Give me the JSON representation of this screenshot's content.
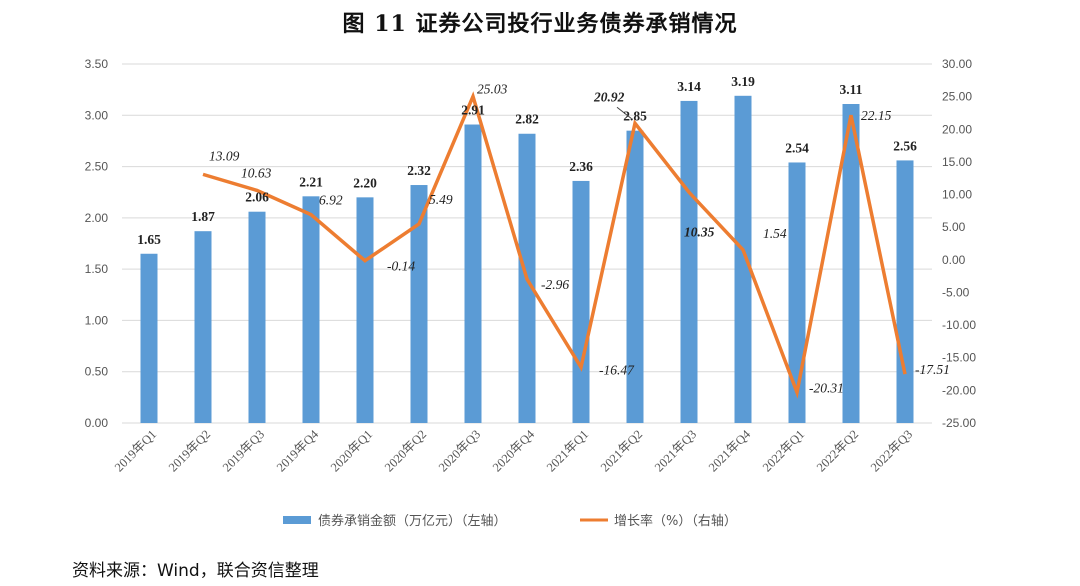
{
  "title": "图 11  证券公司投行业务债券承销情况",
  "source": "资料来源：Wind，联合资信整理",
  "colors": {
    "bar": "#5b9bd5",
    "line": "#ed7d31",
    "grid": "#d9d9d9",
    "highlight_label": "#e0262c"
  },
  "chart_data": {
    "type": "bar+line",
    "categories": [
      "2019年Q1",
      "2019年Q2",
      "2019年Q3",
      "2019年Q4",
      "2020年Q1",
      "2020年Q2",
      "2020年Q3",
      "2020年Q4",
      "2021年Q1",
      "2021年Q2",
      "2021年Q3",
      "2021年Q4",
      "2022年Q1",
      "2022年Q2",
      "2022年Q3"
    ],
    "series": [
      {
        "name": "债券承销金额（万亿元）（左轴）",
        "type": "bar",
        "axis": "left",
        "values": [
          1.65,
          1.87,
          2.06,
          2.21,
          2.2,
          2.32,
          2.91,
          2.82,
          2.36,
          2.85,
          3.14,
          3.19,
          2.54,
          3.11,
          2.56
        ],
        "labels": [
          "1.65",
          "1.87",
          "2.06",
          "2.21",
          "2.20",
          "2.32",
          "2.91",
          "2.82",
          "2.36",
          "2.85",
          "3.14",
          "3.19",
          "2.54",
          "3.11",
          "2.56"
        ]
      },
      {
        "name": "增长率（%）（右轴）",
        "type": "line",
        "axis": "right",
        "values": [
          null,
          13.09,
          10.63,
          6.92,
          -0.14,
          5.49,
          25.03,
          -2.96,
          -16.47,
          20.92,
          10.35,
          1.54,
          -20.31,
          22.15,
          -17.51
        ],
        "labels": [
          null,
          "13.09",
          "10.63",
          "6.92",
          "-0.14",
          "5.49",
          "25.03",
          "-2.96",
          "-16.47",
          "20.92",
          "10.35",
          "1.54",
          "-20.31",
          "22.15",
          "-17.51"
        ]
      }
    ],
    "left_axis": {
      "min": 0,
      "max": 3.5,
      "step": 0.5,
      "ticks": [
        "0.00",
        "0.50",
        "1.00",
        "1.50",
        "2.00",
        "2.50",
        "3.00",
        "3.50"
      ]
    },
    "right_axis": {
      "min": -25,
      "max": 30,
      "step": 5,
      "ticks": [
        "-25.00",
        "-20.00",
        "-15.00",
        "-10.00",
        "-5.00",
        "0.00",
        "5.00",
        "10.00",
        "15.00",
        "20.00",
        "25.00",
        "30.00"
      ]
    },
    "highlights": {
      "bold_label_index": 9,
      "red_label_index": 10
    },
    "legend": {
      "position": "bottom"
    },
    "grid": true
  }
}
